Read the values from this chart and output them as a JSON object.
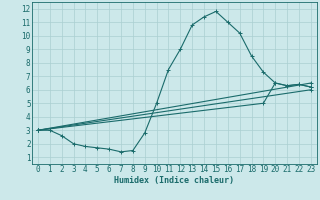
{
  "title": "",
  "xlabel": "Humidex (Indice chaleur)",
  "xlim": [
    -0.5,
    23.5
  ],
  "ylim": [
    0.5,
    12.5
  ],
  "xticks": [
    0,
    1,
    2,
    3,
    4,
    5,
    6,
    7,
    8,
    9,
    10,
    11,
    12,
    13,
    14,
    15,
    16,
    17,
    18,
    19,
    20,
    21,
    22,
    23
  ],
  "yticks": [
    1,
    2,
    3,
    4,
    5,
    6,
    7,
    8,
    9,
    10,
    11,
    12
  ],
  "bg_color": "#cce8ea",
  "grid_color": "#aacfd1",
  "line_color": "#1a6b6b",
  "curve1_x": [
    0,
    1,
    2,
    3,
    4,
    5,
    6,
    7,
    8,
    9,
    10,
    11,
    12,
    13,
    14,
    15,
    16,
    17,
    18,
    19,
    20,
    21,
    22,
    23
  ],
  "curve1_y": [
    3.0,
    3.0,
    2.6,
    2.0,
    1.8,
    1.7,
    1.6,
    1.4,
    1.5,
    2.8,
    5.0,
    7.5,
    9.0,
    10.8,
    11.4,
    11.8,
    11.0,
    10.2,
    8.5,
    7.3,
    6.5,
    6.3,
    6.4,
    6.2
  ],
  "curve2_x": [
    0,
    23
  ],
  "curve2_y": [
    3.0,
    6.5
  ],
  "curve3_x": [
    0,
    19,
    20,
    21,
    22,
    23
  ],
  "curve3_y": [
    3.0,
    5.0,
    6.5,
    6.3,
    6.4,
    6.2
  ],
  "curve4_x": [
    0,
    23
  ],
  "curve4_y": [
    3.0,
    6.0
  ],
  "markersize": 3,
  "linewidth": 0.8,
  "tick_fontsize": 5.5
}
